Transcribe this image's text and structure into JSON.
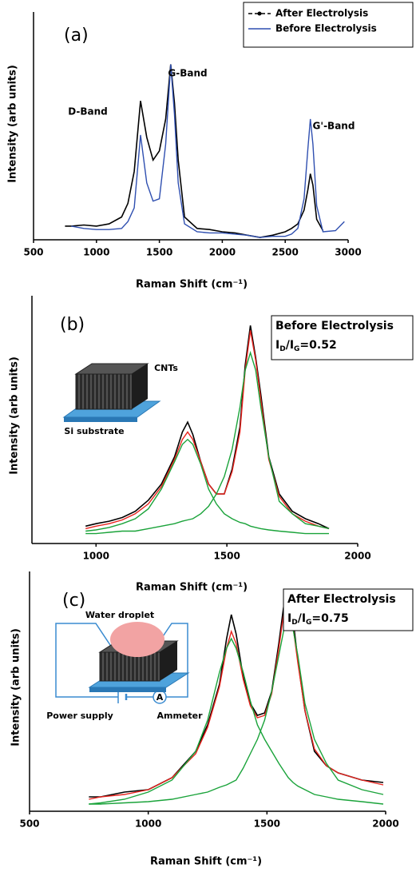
{
  "chart_data": [
    {
      "type": "line",
      "panel_label": "(a)",
      "x_label": "Raman Shift (cm⁻¹)",
      "y_label": "Intensity (arb units)",
      "xlim": [
        500,
        3000
      ],
      "xticks": [
        500,
        1000,
        1500,
        2000,
        2500,
        3000
      ],
      "ylim": [
        0,
        100
      ],
      "legend": "top-right",
      "x": [
        750,
        800,
        900,
        1000,
        1100,
        1200,
        1250,
        1300,
        1350,
        1400,
        1450,
        1500,
        1550,
        1590,
        1620,
        1650,
        1700,
        1800,
        1900,
        2000,
        2100,
        2200,
        2300,
        2400,
        2500,
        2550,
        2600,
        2650,
        2680,
        2700,
        2720,
        2750,
        2800,
        2900,
        2970
      ],
      "series": [
        {
          "name": "After Electrolysis",
          "color": "#000000",
          "values": [
            6,
            6,
            6.5,
            6,
            7,
            10,
            16,
            30,
            61,
            45,
            35,
            39,
            53,
            77,
            60,
            35,
            10,
            5,
            4.5,
            3.5,
            3,
            2,
            1,
            2,
            3.5,
            5,
            7,
            13,
            22,
            29,
            24,
            9,
            4,
            null,
            null
          ]
        },
        {
          "name": "Before Electrolysis",
          "color": "#2f4fb0",
          "values": [
            null,
            6,
            5,
            4.5,
            4.5,
            5,
            8,
            14,
            46,
            25,
            17,
            18,
            42,
            77,
            55,
            25,
            7,
            3.5,
            3,
            3,
            2.5,
            2,
            1,
            1.5,
            1.5,
            2.5,
            5,
            18,
            40,
            53,
            42,
            15,
            3.5,
            4,
            8
          ]
        }
      ],
      "annotations": [
        "D-Band",
        "G-Band",
        "G'-Band"
      ]
    },
    {
      "type": "line",
      "panel_label": "(b)",
      "x_label": "Raman Shift (cm⁻¹)",
      "y_label": "Intensity (arb units)",
      "xlim": [
        755,
        2000
      ],
      "xticks": [
        1000,
        1500,
        2000
      ],
      "ylim": [
        0,
        100
      ],
      "x": [
        960,
        1000,
        1050,
        1100,
        1150,
        1200,
        1250,
        1300,
        1330,
        1350,
        1370,
        1400,
        1430,
        1460,
        1490,
        1520,
        1550,
        1570,
        1590,
        1610,
        1630,
        1660,
        1700,
        1750,
        1800,
        1850,
        1890
      ],
      "series": [
        {
          "color": "#000000",
          "values": [
            7,
            8,
            9,
            10.5,
            13,
            17.5,
            24,
            35,
            45,
            49,
            44,
            33,
            24,
            20,
            20,
            30,
            47,
            72,
            88,
            75,
            60,
            35,
            20,
            13,
            10,
            8,
            6
          ]
        },
        {
          "color": "#e8231d",
          "values": [
            6,
            7,
            8,
            9.5,
            12,
            16,
            23,
            34,
            42,
            45,
            42,
            33,
            24,
            20,
            20,
            29,
            45,
            70,
            86,
            74,
            58,
            34,
            19,
            12,
            9,
            7,
            6
          ]
        },
        {
          "color": "#1aa33a",
          "values": [
            5,
            5.5,
            6.5,
            8,
            10,
            14,
            22,
            33,
            40,
            42,
            40,
            32,
            22,
            16,
            12,
            10,
            8.5,
            8,
            7,
            6.5,
            6,
            5.5,
            5,
            4.5,
            4,
            4,
            4
          ]
        },
        {
          "color": "#1aa33a",
          "values": [
            4,
            4,
            4.5,
            5,
            5,
            6,
            7,
            8,
            9,
            9.5,
            10,
            12,
            15,
            20,
            27,
            38,
            55,
            70,
            77,
            70,
            55,
            35,
            17,
            12,
            8,
            7,
            6
          ]
        }
      ],
      "annotations": [
        "CNTs",
        "Si substrate"
      ],
      "info_box": {
        "title": "Before Electrolysis",
        "ratio_parts": [
          "I",
          "D",
          "/I",
          "G",
          "=0.52"
        ]
      }
    },
    {
      "type": "line",
      "panel_label": "(c)",
      "x_label": "Raman Shift (cm⁻¹)",
      "y_label": "Intensity (arb units)",
      "xlim": [
        500,
        2000
      ],
      "xticks": [
        500,
        1000,
        1500,
        2000
      ],
      "ylim": [
        0,
        100
      ],
      "x": [
        750,
        800,
        900,
        1000,
        1100,
        1200,
        1250,
        1300,
        1330,
        1350,
        1370,
        1400,
        1430,
        1460,
        1490,
        1520,
        1550,
        1570,
        1590,
        1610,
        1630,
        1660,
        1700,
        1750,
        1800,
        1900,
        1990
      ],
      "series": [
        {
          "color": "#000000",
          "values": [
            6,
            6,
            8,
            9,
            14,
            25,
            36,
            53,
            72,
            82,
            74,
            56,
            45,
            40,
            41,
            50,
            70,
            85,
            91,
            80,
            63,
            42,
            25,
            19,
            16,
            13,
            12
          ]
        },
        {
          "color": "#e8231d",
          "values": [
            5,
            6,
            7,
            9,
            14,
            24,
            35,
            52,
            68,
            75,
            70,
            55,
            44,
            39,
            40,
            49,
            68,
            82,
            86,
            77,
            62,
            42,
            26,
            19,
            16,
            13,
            11
          ]
        },
        {
          "color": "#1aa33a",
          "values": [
            3,
            3.5,
            5,
            8,
            13,
            25,
            38,
            58,
            68,
            72,
            68,
            58,
            46,
            36,
            30,
            25,
            20,
            17,
            14,
            12,
            10.5,
            9,
            7,
            6,
            5,
            4,
            3
          ]
        },
        {
          "color": "#1aa33a",
          "values": [
            3,
            3,
            3.5,
            4,
            5,
            7,
            8,
            10,
            11,
            12,
            13,
            18,
            24,
            30,
            38,
            50,
            65,
            75,
            82,
            76,
            65,
            45,
            30,
            20,
            13,
            9,
            7
          ]
        }
      ],
      "annotations": [
        "Water droplet",
        "A",
        "Power supply",
        "Ammeter"
      ],
      "info_box": {
        "title": "After Electrolysis",
        "ratio_parts": [
          "I",
          "D",
          "/I",
          "G",
          "=0.75"
        ]
      }
    }
  ]
}
